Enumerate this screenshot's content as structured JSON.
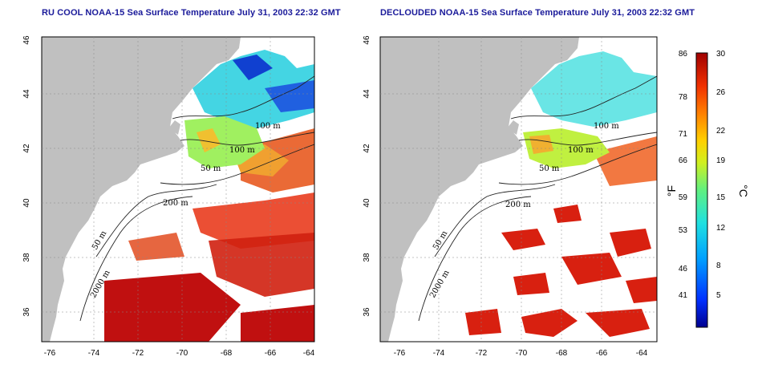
{
  "panels": [
    {
      "title": "RU COOL NOAA-15 Sea Surface Temperature July 31, 2003 22:32 GMT",
      "contour_labels": [
        "100 m",
        "100 m",
        "50 m",
        "200 m",
        "50 m",
        "2000 m"
      ]
    },
    {
      "title": "DECLOUDED NOAA-15 Sea Surface Temperature July 31, 2003 22:32 GMT",
      "contour_labels": [
        "100 m",
        "100 m",
        "50 m",
        "200 m",
        "50 m",
        "2000 m"
      ]
    }
  ],
  "axes": {
    "x_ticks": [
      "-76",
      "-74",
      "-72",
      "-70",
      "-68",
      "-66",
      "-64"
    ],
    "y_ticks": [
      "36",
      "38",
      "40",
      "42",
      "44",
      "46"
    ]
  },
  "colorbar": {
    "fahrenheit_ticks": [
      "86",
      "78",
      "71",
      "66",
      "59",
      "53",
      "46",
      "41"
    ],
    "celsius_ticks": [
      "30",
      "26",
      "22",
      "19",
      "15",
      "12",
      "8",
      "5"
    ],
    "fahrenheit_unit": "°F",
    "celsius_unit": "°C"
  },
  "colors": {
    "land": "#c0c0c0",
    "water_cloud": "#ffffff",
    "title": "#1a1a9a",
    "warm": "#c81010",
    "cold": "#1020c0"
  }
}
